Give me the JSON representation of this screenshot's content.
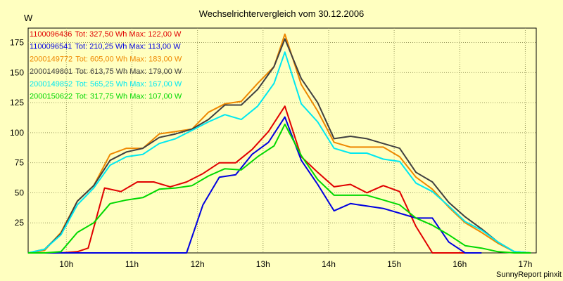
{
  "chart_data": {
    "type": "line",
    "title": "Wechselrichtervergleich vom 30.12.2006",
    "ylabel": "W",
    "ylim": [
      0,
      187
    ],
    "yticks": [
      25,
      50,
      75,
      100,
      125,
      150,
      175
    ],
    "xlim": [
      9.417,
      17.167
    ],
    "xticks": [
      {
        "x": 10,
        "label": "10h"
      },
      {
        "x": 11,
        "label": "11h"
      },
      {
        "x": 12,
        "label": "12h"
      },
      {
        "x": 13,
        "label": "13h"
      },
      {
        "x": 14,
        "label": "14h"
      },
      {
        "x": 15,
        "label": "15h"
      },
      {
        "x": 16,
        "label": "16h"
      },
      {
        "x": 17,
        "label": "17h"
      }
    ],
    "grid": true,
    "legend_position": "top-left",
    "footer": "SunnyReport pinxit",
    "series": [
      {
        "name": "1100096436",
        "legend": "Tot: 327,50 Wh Max: 122,00 W",
        "color": "#e00000",
        "points": [
          [
            9.417,
            0
          ],
          [
            9.667,
            0
          ],
          [
            9.917,
            0
          ],
          [
            10.167,
            1
          ],
          [
            10.333,
            4
          ],
          [
            10.583,
            54
          ],
          [
            10.833,
            51
          ],
          [
            11.083,
            59
          ],
          [
            11.333,
            59
          ],
          [
            11.583,
            55
          ],
          [
            11.833,
            59
          ],
          [
            12.083,
            66
          ],
          [
            12.333,
            75
          ],
          [
            12.583,
            75
          ],
          [
            12.833,
            86
          ],
          [
            13.083,
            101
          ],
          [
            13.333,
            122
          ],
          [
            13.583,
            80
          ],
          [
            13.833,
            67
          ],
          [
            14.083,
            55
          ],
          [
            14.333,
            57
          ],
          [
            14.583,
            50
          ],
          [
            14.833,
            56
          ],
          [
            15.083,
            51
          ],
          [
            15.333,
            22
          ],
          [
            15.583,
            0
          ],
          [
            15.833,
            0
          ],
          [
            16.083,
            0
          ]
        ]
      },
      {
        "name": "1100096541",
        "legend": "Tot: 210,25 Wh Max: 113,00 W",
        "color": "#0000e0",
        "points": [
          [
            9.417,
            0
          ],
          [
            11.833,
            0
          ],
          [
            12.083,
            40
          ],
          [
            12.333,
            63
          ],
          [
            12.583,
            65
          ],
          [
            12.833,
            82
          ],
          [
            13.083,
            92
          ],
          [
            13.333,
            113
          ],
          [
            13.583,
            77
          ],
          [
            13.833,
            57
          ],
          [
            14.083,
            35
          ],
          [
            14.333,
            41
          ],
          [
            14.583,
            39
          ],
          [
            14.833,
            37
          ],
          [
            15.083,
            33
          ],
          [
            15.333,
            29
          ],
          [
            15.583,
            29
          ],
          [
            15.833,
            9
          ],
          [
            16.083,
            0
          ],
          [
            16.333,
            0
          ]
        ]
      },
      {
        "name": "2000149772",
        "legend": "Tot: 605,00 Wh Max: 183,00 W",
        "color": "#ee8800",
        "points": [
          [
            9.417,
            0
          ],
          [
            9.667,
            2
          ],
          [
            9.917,
            17
          ],
          [
            10.167,
            43
          ],
          [
            10.417,
            56
          ],
          [
            10.667,
            82
          ],
          [
            10.917,
            87
          ],
          [
            11.167,
            87
          ],
          [
            11.417,
            99
          ],
          [
            11.667,
            101
          ],
          [
            11.917,
            103
          ],
          [
            12.167,
            117
          ],
          [
            12.417,
            124
          ],
          [
            12.667,
            126
          ],
          [
            12.917,
            141
          ],
          [
            13.167,
            155
          ],
          [
            13.333,
            182
          ],
          [
            13.583,
            140
          ],
          [
            13.833,
            118
          ],
          [
            14.083,
            92
          ],
          [
            14.333,
            88
          ],
          [
            14.583,
            88
          ],
          [
            14.833,
            88
          ],
          [
            15.083,
            80
          ],
          [
            15.333,
            63
          ],
          [
            15.583,
            53
          ],
          [
            15.833,
            38
          ],
          [
            16.083,
            25
          ],
          [
            16.333,
            17
          ],
          [
            16.583,
            8
          ],
          [
            16.833,
            1
          ],
          [
            17.083,
            0
          ]
        ]
      },
      {
        "name": "2000149801",
        "legend": "Tot: 613,75 Wh Max: 179,00 W",
        "color": "#404040",
        "points": [
          [
            9.417,
            0
          ],
          [
            9.667,
            3
          ],
          [
            9.917,
            16
          ],
          [
            10.167,
            43
          ],
          [
            10.417,
            56
          ],
          [
            10.667,
            77
          ],
          [
            10.917,
            84
          ],
          [
            11.167,
            87
          ],
          [
            11.417,
            96
          ],
          [
            11.667,
            99
          ],
          [
            11.917,
            103
          ],
          [
            12.167,
            111
          ],
          [
            12.417,
            123
          ],
          [
            12.667,
            123
          ],
          [
            12.917,
            136
          ],
          [
            13.167,
            155
          ],
          [
            13.333,
            178
          ],
          [
            13.583,
            145
          ],
          [
            13.833,
            125
          ],
          [
            14.083,
            95
          ],
          [
            14.333,
            97
          ],
          [
            14.583,
            95
          ],
          [
            14.833,
            91
          ],
          [
            15.083,
            87
          ],
          [
            15.333,
            67
          ],
          [
            15.583,
            59
          ],
          [
            15.833,
            42
          ],
          [
            16.083,
            30
          ],
          [
            16.333,
            20
          ],
          [
            16.583,
            9
          ],
          [
            16.833,
            1
          ],
          [
            17.083,
            0
          ]
        ]
      },
      {
        "name": "2000149852",
        "legend": "Tot: 565,25 Wh Max: 167,00 W",
        "color": "#00e8f0",
        "points": [
          [
            9.417,
            0
          ],
          [
            9.667,
            3
          ],
          [
            9.917,
            15
          ],
          [
            10.167,
            40
          ],
          [
            10.417,
            54
          ],
          [
            10.667,
            73
          ],
          [
            10.917,
            80
          ],
          [
            11.167,
            82
          ],
          [
            11.417,
            91
          ],
          [
            11.667,
            95
          ],
          [
            11.917,
            102
          ],
          [
            12.167,
            109
          ],
          [
            12.417,
            115
          ],
          [
            12.667,
            111
          ],
          [
            12.917,
            122
          ],
          [
            13.167,
            141
          ],
          [
            13.333,
            167
          ],
          [
            13.583,
            124
          ],
          [
            13.833,
            109
          ],
          [
            14.083,
            87
          ],
          [
            14.333,
            83
          ],
          [
            14.583,
            83
          ],
          [
            14.833,
            78
          ],
          [
            15.083,
            76
          ],
          [
            15.333,
            58
          ],
          [
            15.583,
            51
          ],
          [
            15.833,
            39
          ],
          [
            16.083,
            26
          ],
          [
            16.333,
            19
          ],
          [
            16.583,
            9
          ],
          [
            16.833,
            1
          ],
          [
            17.083,
            0
          ]
        ]
      },
      {
        "name": "2000150622",
        "legend": "Tot: 317,75 Wh Max: 107,00 W",
        "color": "#00d800",
        "points": [
          [
            9.417,
            0
          ],
          [
            9.667,
            0
          ],
          [
            9.917,
            1
          ],
          [
            10.167,
            17
          ],
          [
            10.417,
            25
          ],
          [
            10.667,
            41
          ],
          [
            10.917,
            44
          ],
          [
            11.167,
            46
          ],
          [
            11.417,
            53
          ],
          [
            11.667,
            54
          ],
          [
            11.917,
            56
          ],
          [
            12.167,
            64
          ],
          [
            12.417,
            70
          ],
          [
            12.667,
            69
          ],
          [
            12.917,
            80
          ],
          [
            13.167,
            89
          ],
          [
            13.333,
            107
          ],
          [
            13.583,
            81
          ],
          [
            13.833,
            61
          ],
          [
            14.083,
            48
          ],
          [
            14.333,
            48
          ],
          [
            14.583,
            48
          ],
          [
            14.833,
            44
          ],
          [
            15.083,
            40
          ],
          [
            15.333,
            29
          ],
          [
            15.583,
            23
          ],
          [
            15.833,
            15
          ],
          [
            16.083,
            6
          ],
          [
            16.333,
            4
          ],
          [
            16.583,
            1
          ],
          [
            16.833,
            0
          ],
          [
            17.083,
            0
          ]
        ]
      }
    ]
  }
}
